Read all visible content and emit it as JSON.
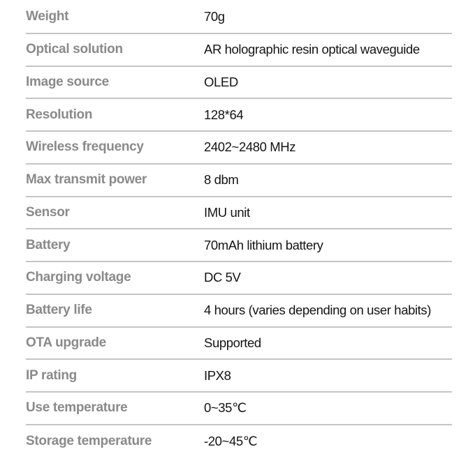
{
  "specs": [
    {
      "label": "Weight",
      "value": "70g"
    },
    {
      "label": "Optical solution",
      "value": "AR holographic resin optical waveguide"
    },
    {
      "label": "Image source",
      "value": "OLED"
    },
    {
      "label": "Resolution",
      "value": "128*64"
    },
    {
      "label": "Wireless frequency",
      "value": "2402~2480 MHz"
    },
    {
      "label": "Max transmit power",
      "value": "8 dbm"
    },
    {
      "label": "Sensor",
      "value": "IMU unit"
    },
    {
      "label": "Battery",
      "value": "70mAh lithium battery"
    },
    {
      "label": "Charging voltage",
      "value": "DC 5V"
    },
    {
      "label": "Battery life",
      "value": "4 hours (varies depending on user habits)"
    },
    {
      "label": "OTA upgrade",
      "value": "Supported"
    },
    {
      "label": "IP rating",
      "value": "IPX8"
    },
    {
      "label": "Use temperature",
      "value": "0~35℃"
    },
    {
      "label": "Storage temperature",
      "value": "-20~45℃"
    }
  ]
}
